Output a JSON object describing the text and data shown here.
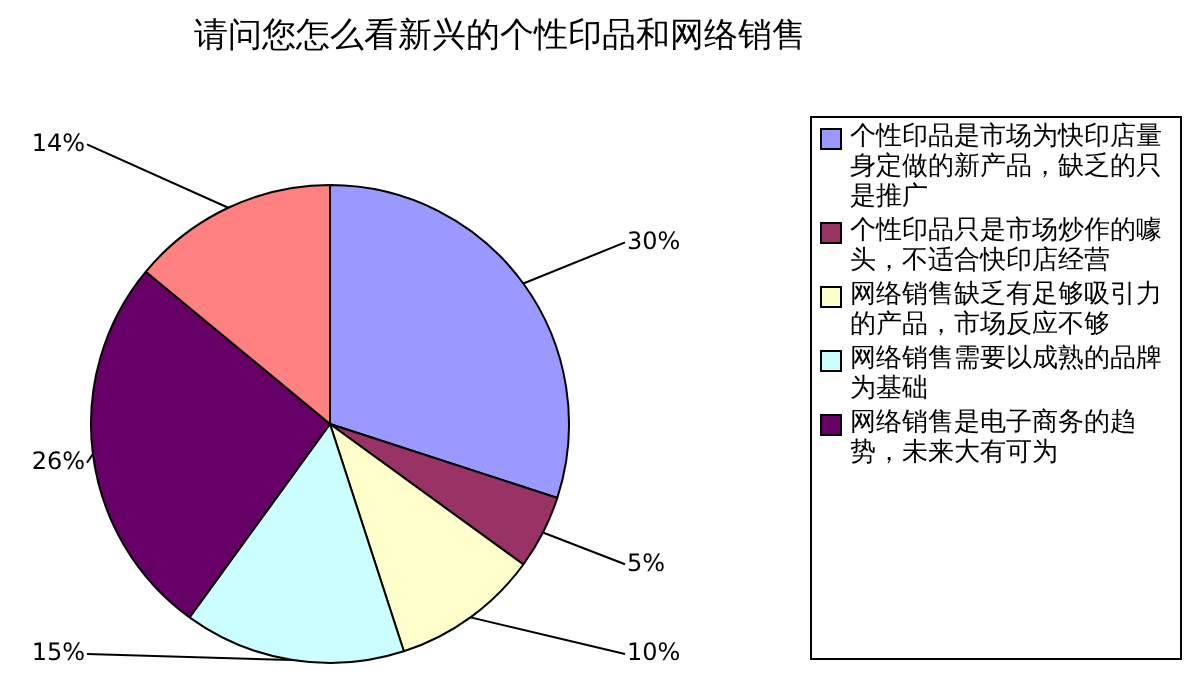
{
  "chart_data": {
    "type": "pie",
    "title": "请问您怎么看新兴的个性印品和网络销售",
    "categories": [
      "个性印品是市场为快印店量身定做的新产品，缺乏的只是推广",
      "个性印品只是市场炒作的噱头，不适合快印店经营",
      "网络销售缺乏有足够吸引力的产品，市场反应不够",
      "网络销售需要以成熟的品牌为基础",
      "网络销售是电子商务的趋势，未来大有可为",
      null
    ],
    "values": [
      30,
      5,
      10,
      15,
      26,
      14
    ],
    "value_labels": [
      "30%",
      "5%",
      "10%",
      "15%",
      "26%",
      "14%"
    ],
    "colors": [
      "#9999ff",
      "#993366",
      "#ffffcc",
      "#ccffff",
      "#660066",
      "#ff8080"
    ],
    "legend": "right"
  }
}
